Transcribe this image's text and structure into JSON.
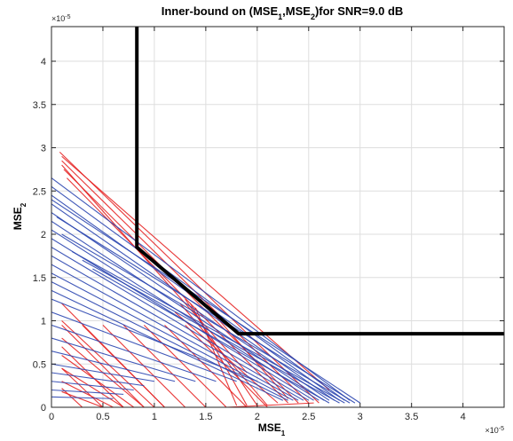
{
  "chart_data": {
    "type": "line",
    "title": {
      "main": "Inner-bound on (MSE",
      "sub1": "1",
      "mid": ",MSE",
      "sub2": "2",
      "end": ")for SNR=9.0 dB"
    },
    "xlabel": {
      "main": "MSE",
      "sub": "1"
    },
    "ylabel": {
      "main": "MSE",
      "sub": "2"
    },
    "x_exponent": {
      "base": "×10",
      "exp": "-5"
    },
    "y_exponent": {
      "base": "×10",
      "exp": "-5"
    },
    "xlim": [
      0,
      4.4
    ],
    "ylim": [
      0,
      4.4
    ],
    "grid": true,
    "x_ticks": [
      "0",
      "0.5",
      "1",
      "1.5",
      "2",
      "2.5",
      "3",
      "3.5",
      "4"
    ],
    "y_ticks": [
      "0",
      "0.5",
      "1",
      "1.5",
      "2",
      "2.5",
      "3",
      "3.5",
      "4"
    ],
    "colors": {
      "outer_bound": "#000000",
      "blue_family": "#2b46b0",
      "red_family": "#e52222"
    },
    "series": [
      {
        "color": "#000000",
        "points": [
          [
            0.83,
            4.4
          ],
          [
            0.83,
            2.05
          ],
          [
            0.83,
            1.85
          ],
          [
            1.82,
            0.85
          ],
          [
            4.4,
            0.85
          ]
        ]
      },
      {
        "color": "#2b46b0",
        "segments": [
          [
            [
              0,
              2.65
            ],
            [
              2.9,
              0.08
            ]
          ],
          [
            [
              0,
              2.55
            ],
            [
              2.85,
              0.08
            ]
          ],
          [
            [
              0,
              2.45
            ],
            [
              2.8,
              0.08
            ]
          ],
          [
            [
              0,
              2.35
            ],
            [
              2.75,
              0.08
            ]
          ],
          [
            [
              0,
              2.25
            ],
            [
              2.7,
              0.08
            ]
          ],
          [
            [
              0,
              2.15
            ],
            [
              2.65,
              0.08
            ]
          ],
          [
            [
              0,
              2.05
            ],
            [
              2.6,
              0.08
            ]
          ],
          [
            [
              0,
              1.95
            ],
            [
              2.55,
              0.08
            ]
          ],
          [
            [
              0,
              1.85
            ],
            [
              2.5,
              0.08
            ]
          ],
          [
            [
              0,
              1.75
            ],
            [
              2.45,
              0.08
            ]
          ],
          [
            [
              0,
              1.65
            ],
            [
              2.4,
              0.08
            ]
          ],
          [
            [
              0,
              1.55
            ],
            [
              2.35,
              0.08
            ]
          ],
          [
            [
              0,
              1.45
            ],
            [
              2.3,
              0.08
            ]
          ],
          [
            [
              0,
              1.35
            ],
            [
              2.25,
              0.08
            ]
          ],
          [
            [
              0,
              1.25
            ],
            [
              2.0,
              0.3
            ]
          ],
          [
            [
              0,
              1.1
            ],
            [
              1.8,
              0.3
            ]
          ],
          [
            [
              0,
              0.95
            ],
            [
              1.6,
              0.3
            ]
          ],
          [
            [
              0,
              0.8
            ],
            [
              1.4,
              0.3
            ]
          ],
          [
            [
              0,
              0.65
            ],
            [
              1.2,
              0.3
            ]
          ],
          [
            [
              0,
              0.5
            ],
            [
              1.0,
              0.3
            ]
          ],
          [
            [
              0,
              0.4
            ],
            [
              0.9,
              0.25
            ]
          ],
          [
            [
              0,
              0.3
            ],
            [
              0.8,
              0.2
            ]
          ],
          [
            [
              0,
              0.2
            ],
            [
              0.7,
              0.15
            ]
          ],
          [
            [
              0,
              0.12
            ],
            [
              0.6,
              0.1
            ]
          ],
          [
            [
              0,
              2.4
            ],
            [
              3.0,
              0.05
            ]
          ],
          [
            [
              0.05,
              2.2
            ],
            [
              2.95,
              0.05
            ]
          ],
          [
            [
              0.1,
              2.0
            ],
            [
              2.9,
              0.05
            ]
          ],
          [
            [
              0.2,
              1.8
            ],
            [
              2.85,
              0.05
            ]
          ],
          [
            [
              0.3,
              1.7
            ],
            [
              2.8,
              0.05
            ]
          ],
          [
            [
              0.4,
              1.6
            ],
            [
              2.7,
              0.05
            ]
          ]
        ]
      },
      {
        "color": "#e52222",
        "segments": [
          [
            [
              0.08,
              2.95
            ],
            [
              2.6,
              0.05
            ]
          ],
          [
            [
              0.1,
              2.85
            ],
            [
              2.5,
              0.05
            ]
          ],
          [
            [
              0.12,
              2.75
            ],
            [
              2.4,
              0.05
            ]
          ],
          [
            [
              0.15,
              2.65
            ],
            [
              2.3,
              0.05
            ]
          ],
          [
            [
              0.1,
              2.9
            ],
            [
              2.7,
              0.2
            ]
          ],
          [
            [
              0.1,
              2.8
            ],
            [
              1.9,
              0.4
            ]
          ],
          [
            [
              1.25,
              1.2
            ],
            [
              2.1,
              0.02
            ]
          ],
          [
            [
              1.3,
              1.25
            ],
            [
              2.0,
              0.02
            ]
          ],
          [
            [
              1.35,
              1.2
            ],
            [
              1.9,
              0.02
            ]
          ],
          [
            [
              1.4,
              1.15
            ],
            [
              1.8,
              0.02
            ]
          ],
          [
            [
              1.2,
              1.1
            ],
            [
              2.2,
              0.05
            ]
          ],
          [
            [
              1.45,
              1.25
            ],
            [
              2.3,
              0.1
            ]
          ],
          [
            [
              0.1,
              1.2
            ],
            [
              1.1,
              0.0
            ]
          ],
          [
            [
              0.1,
              1.0
            ],
            [
              1.0,
              0.0
            ]
          ],
          [
            [
              0.1,
              0.8
            ],
            [
              0.9,
              0.0
            ]
          ],
          [
            [
              0.1,
              0.6
            ],
            [
              0.8,
              0.0
            ]
          ],
          [
            [
              0.1,
              0.45
            ],
            [
              0.7,
              0.0
            ]
          ],
          [
            [
              0.1,
              0.3
            ],
            [
              0.6,
              0.0
            ]
          ],
          [
            [
              0.1,
              0.18
            ],
            [
              0.5,
              0.0
            ]
          ],
          [
            [
              0.9,
              0.0
            ],
            [
              0.1,
              0.95
            ]
          ],
          [
            [
              1.1,
              0.0
            ],
            [
              0.3,
              0.95
            ]
          ],
          [
            [
              1.3,
              0.0
            ],
            [
              0.5,
              0.95
            ]
          ],
          [
            [
              1.5,
              0.0
            ],
            [
              0.7,
              0.95
            ]
          ],
          [
            [
              1.7,
              0.0
            ],
            [
              0.9,
              0.95
            ]
          ],
          [
            [
              1.9,
              0.0
            ],
            [
              1.1,
              0.95
            ]
          ],
          [
            [
              2.1,
              0.0
            ],
            [
              1.3,
              0.95
            ]
          ],
          [
            [
              0.7,
              0.0
            ],
            [
              0.1,
              0.7
            ]
          ],
          [
            [
              0.5,
              0.0
            ],
            [
              0.1,
              0.45
            ]
          ],
          [
            [
              0.3,
              0.0
            ],
            [
              0.1,
              0.22
            ]
          ],
          [
            [
              1.7,
              0.0
            ],
            [
              2.55,
              0.05
            ]
          ]
        ]
      }
    ]
  }
}
